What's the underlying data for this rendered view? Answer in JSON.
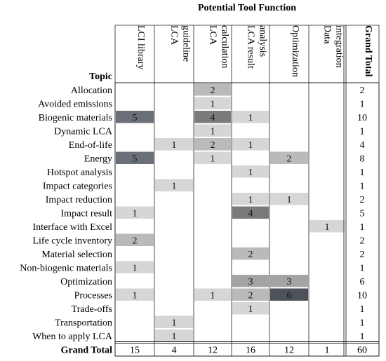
{
  "chart_data": {
    "type": "heatmap",
    "title": "Potential Tool Function",
    "row_header": "Topic",
    "columns": [
      "LCI library",
      "LCA guideline",
      "LCA calculation",
      "LCA result analysis",
      "Optimization",
      "Data integration"
    ],
    "column_lines": [
      [
        "LCI library"
      ],
      [
        "LCA",
        "guideline"
      ],
      [
        "LCA",
        "calculation"
      ],
      [
        "LCA result",
        "analysis"
      ],
      [
        "Optimization"
      ],
      [
        "Data",
        "integration"
      ]
    ],
    "total_label": "Grand Total",
    "rows": [
      {
        "topic": "Allocation",
        "values": [
          null,
          null,
          2,
          null,
          null,
          null
        ],
        "total": 2
      },
      {
        "topic": "Avoided emissions",
        "values": [
          null,
          null,
          1,
          null,
          null,
          null
        ],
        "total": 1
      },
      {
        "topic": "Biogenic materials",
        "values": [
          5,
          null,
          4,
          1,
          null,
          null
        ],
        "total": 10
      },
      {
        "topic": "Dynamic LCA",
        "values": [
          null,
          null,
          1,
          null,
          null,
          null
        ],
        "total": 1
      },
      {
        "topic": "End-of-life",
        "values": [
          null,
          1,
          2,
          1,
          null,
          null
        ],
        "total": 4
      },
      {
        "topic": "Energy",
        "values": [
          5,
          null,
          1,
          null,
          2,
          null
        ],
        "total": 8
      },
      {
        "topic": "Hotspot analysis",
        "values": [
          null,
          null,
          null,
          1,
          null,
          null
        ],
        "total": 1
      },
      {
        "topic": "Impact categories",
        "values": [
          null,
          1,
          null,
          null,
          null,
          null
        ],
        "total": 1
      },
      {
        "topic": "Impact reduction",
        "values": [
          null,
          null,
          null,
          1,
          1,
          null
        ],
        "total": 2
      },
      {
        "topic": "Impact result",
        "values": [
          1,
          null,
          null,
          4,
          null,
          null
        ],
        "total": 5
      },
      {
        "topic": "Interface with Excel",
        "values": [
          null,
          null,
          null,
          null,
          null,
          1
        ],
        "total": 1
      },
      {
        "topic": "Life cycle inventory",
        "values": [
          2,
          null,
          null,
          null,
          null,
          null
        ],
        "total": 2
      },
      {
        "topic": "Material selection",
        "values": [
          null,
          null,
          null,
          2,
          null,
          null
        ],
        "total": 2
      },
      {
        "topic": "Non-biogenic materials",
        "values": [
          1,
          null,
          null,
          null,
          null,
          null
        ],
        "total": 1
      },
      {
        "topic": "Optimization",
        "values": [
          null,
          null,
          null,
          3,
          3,
          null
        ],
        "total": 6
      },
      {
        "topic": "Processes",
        "values": [
          1,
          null,
          1,
          2,
          6,
          null
        ],
        "total": 10
      },
      {
        "topic": "Trade-offs",
        "values": [
          null,
          null,
          null,
          1,
          null,
          null
        ],
        "total": 1
      },
      {
        "topic": "Transportation",
        "values": [
          null,
          1,
          null,
          null,
          null,
          null
        ],
        "total": 1
      },
      {
        "topic": "When to apply LCA",
        "values": [
          null,
          1,
          null,
          null,
          null,
          null
        ],
        "total": 1
      }
    ],
    "grand_total_label": "Grand Total",
    "column_totals": [
      15,
      4,
      12,
      16,
      12,
      1
    ],
    "grand_total": 60,
    "color_scale": {
      "1": "#d6d6d6",
      "2": "#bababa",
      "3": "#a3a3a3",
      "4": "#7a7a7a",
      "5": "#6b6f77",
      "6": "#4d515a"
    },
    "grid": true,
    "legend": "none"
  }
}
